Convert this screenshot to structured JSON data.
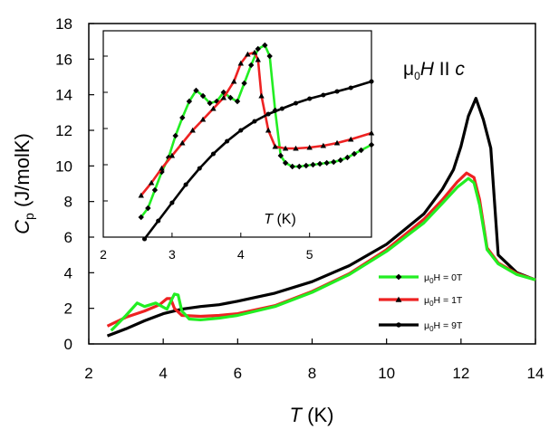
{
  "chart_data": {
    "main": {
      "type": "line",
      "title": "",
      "xlabel": "T (K)",
      "ylabel": "Cp (J/molK)",
      "xlim": [
        2,
        14
      ],
      "ylim": [
        0,
        18
      ],
      "xticks": [
        2,
        4,
        6,
        8,
        10,
        12,
        14
      ],
      "yticks": [
        0,
        2,
        4,
        6,
        8,
        10,
        12,
        14,
        16,
        18
      ],
      "annotation": {
        "symbol": "μ",
        "sub": "0",
        "italic": "H",
        "mid": " II ",
        "last": "c"
      },
      "legend": {
        "position": "bottom-right"
      },
      "series": [
        {
          "name": "μ0H = 0T",
          "legend_sub": "0",
          "legend_prefix": "μ",
          "legend_rest": "H = 0T",
          "color": "#22ee22",
          "marker": "diamond",
          "x": [
            2.6,
            3.0,
            3.3,
            3.5,
            3.8,
            4.1,
            4.3,
            4.4,
            4.5,
            4.7,
            5.0,
            5.5,
            6.0,
            7.0,
            8.0,
            9.0,
            10.0,
            11.0,
            11.5,
            11.9,
            12.2,
            12.35,
            12.5,
            12.7,
            13.0,
            13.5,
            14.0
          ],
          "y": [
            0.75,
            1.6,
            2.3,
            2.1,
            2.3,
            1.95,
            2.8,
            2.75,
            1.85,
            1.4,
            1.35,
            1.45,
            1.6,
            2.1,
            2.9,
            3.9,
            5.2,
            6.8,
            7.9,
            8.8,
            9.3,
            9.05,
            7.8,
            5.3,
            4.5,
            3.9,
            3.6
          ]
        },
        {
          "name": "μ0H = 1T",
          "legend_sub": "0",
          "legend_prefix": "μ",
          "legend_rest": "H = 1T",
          "color": "#ee2222",
          "marker": "triangle",
          "x": [
            2.5,
            3.0,
            3.5,
            3.9,
            4.1,
            4.2,
            4.3,
            4.5,
            5.0,
            5.5,
            6.0,
            7.0,
            8.0,
            9.0,
            10.0,
            11.0,
            11.5,
            11.9,
            12.15,
            12.35,
            12.5,
            12.7,
            13.0,
            13.5,
            14.0
          ],
          "y": [
            1.0,
            1.5,
            1.85,
            2.2,
            2.55,
            2.55,
            2.0,
            1.6,
            1.55,
            1.6,
            1.7,
            2.15,
            2.95,
            3.95,
            5.3,
            7.0,
            8.1,
            9.1,
            9.6,
            9.35,
            8.1,
            5.4,
            4.55,
            3.95,
            3.6
          ]
        },
        {
          "name": "μ0H = 9T",
          "legend_sub": "0",
          "legend_prefix": "μ",
          "legend_rest": "H = 9T",
          "color": "#000000",
          "marker": "circle",
          "x": [
            2.5,
            3.0,
            3.5,
            4.0,
            4.5,
            5.0,
            5.5,
            6.0,
            7.0,
            8.0,
            9.0,
            10.0,
            11.0,
            11.5,
            11.8,
            12.0,
            12.2,
            12.4,
            12.6,
            12.8,
            13.0,
            13.5,
            14.0
          ],
          "y": [
            0.45,
            0.85,
            1.3,
            1.7,
            1.95,
            2.1,
            2.2,
            2.4,
            2.85,
            3.5,
            4.4,
            5.6,
            7.3,
            8.7,
            9.8,
            11.1,
            12.8,
            13.8,
            12.6,
            11.0,
            5.0,
            4.0,
            3.6
          ]
        }
      ]
    },
    "inset": {
      "type": "line",
      "xlabel": "T (K)",
      "xlim": [
        2,
        5.9
      ],
      "ylim": [
        6,
        17.4
      ],
      "xticks": [
        2,
        3,
        4,
        5
      ],
      "series": [
        {
          "name": "0T",
          "color": "#22ee22",
          "marker": "diamond",
          "x": [
            2.55,
            2.65,
            2.75,
            2.85,
            2.95,
            3.05,
            3.15,
            3.25,
            3.35,
            3.45,
            3.55,
            3.65,
            3.75,
            3.85,
            3.95,
            4.05,
            4.15,
            4.25,
            4.35,
            4.42,
            4.5,
            4.58,
            4.65,
            4.75,
            4.85,
            4.95,
            5.05,
            5.15,
            5.25,
            5.35,
            5.45,
            5.55,
            5.65,
            5.75,
            5.9
          ],
          "y": [
            7.1,
            7.6,
            8.6,
            9.6,
            10.4,
            11.6,
            12.6,
            13.5,
            14.1,
            13.8,
            13.4,
            13.5,
            14.0,
            13.7,
            13.5,
            14.5,
            15.5,
            16.4,
            16.6,
            16.0,
            13.0,
            10.5,
            10.1,
            9.9,
            9.9,
            9.95,
            10.0,
            10.05,
            10.1,
            10.15,
            10.25,
            10.4,
            10.6,
            10.8,
            11.1
          ]
        },
        {
          "name": "1T",
          "color": "#ee2222",
          "marker": "triangle",
          "x": [
            2.55,
            2.7,
            2.85,
            3.0,
            3.15,
            3.3,
            3.45,
            3.6,
            3.75,
            3.9,
            4.0,
            4.1,
            4.2,
            4.25,
            4.3,
            4.4,
            4.5,
            4.65,
            4.8,
            5.0,
            5.2,
            5.4,
            5.6,
            5.9
          ],
          "y": [
            8.3,
            9.0,
            9.8,
            10.5,
            11.2,
            11.9,
            12.5,
            13.1,
            13.7,
            14.6,
            15.6,
            16.1,
            16.2,
            15.8,
            13.8,
            11.9,
            11.0,
            10.9,
            10.9,
            10.95,
            11.05,
            11.2,
            11.4,
            11.75
          ]
        },
        {
          "name": "9T",
          "color": "#000000",
          "marker": "circle",
          "x": [
            2.6,
            2.8,
            3.0,
            3.2,
            3.4,
            3.6,
            3.8,
            4.0,
            4.2,
            4.4,
            4.6,
            4.8,
            5.0,
            5.2,
            5.4,
            5.6,
            5.9
          ],
          "y": [
            5.9,
            6.9,
            7.9,
            8.9,
            9.8,
            10.6,
            11.3,
            11.9,
            12.4,
            12.8,
            13.1,
            13.4,
            13.65,
            13.85,
            14.05,
            14.25,
            14.6
          ]
        }
      ]
    }
  }
}
